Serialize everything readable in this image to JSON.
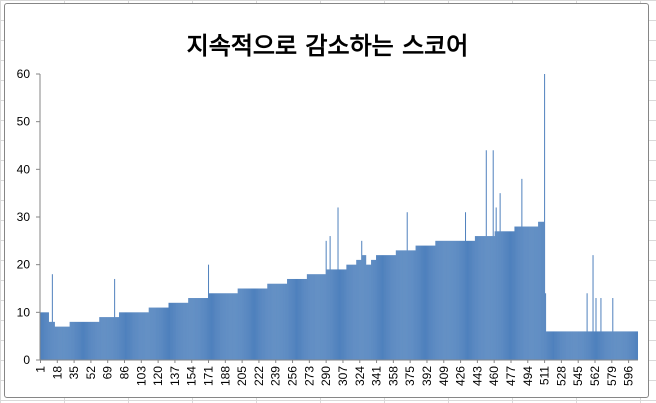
{
  "chart_data": {
    "type": "bar",
    "title": "지속적으로 감소하는 스코어",
    "xlabel": "",
    "ylabel": "",
    "ylim": [
      0,
      60
    ],
    "yticks": [
      0,
      10,
      20,
      30,
      40,
      50,
      60
    ],
    "x_range": [
      1,
      605
    ],
    "xtick_labels": [
      "1",
      "18",
      "35",
      "52",
      "69",
      "86",
      "103",
      "120",
      "137",
      "154",
      "171",
      "188",
      "205",
      "222",
      "239",
      "256",
      "273",
      "290",
      "307",
      "324",
      "341",
      "358",
      "375",
      "392",
      "409",
      "426",
      "443",
      "460",
      "477",
      "494",
      "511",
      "528",
      "545",
      "562",
      "579",
      "596"
    ],
    "grid": false,
    "legend": "none",
    "bar_color": "#4f81bd",
    "series": [
      {
        "segments": [
          {
            "x": [
              1,
              9
            ],
            "y": [
              10,
              10
            ]
          },
          {
            "x": [
              10,
              15
            ],
            "y": [
              8,
              8
            ]
          },
          {
            "x": [
              16,
              30
            ],
            "y": [
              7,
              7
            ]
          },
          {
            "x": [
              31,
              60
            ],
            "y": [
              8,
              8
            ]
          },
          {
            "x": [
              61,
              100
            ],
            "y": [
              9,
              10
            ]
          },
          {
            "x": [
              101,
              140
            ],
            "y": [
              10,
              12
            ]
          },
          {
            "x": [
              141,
              180
            ],
            "y": [
              12,
              14
            ]
          },
          {
            "x": [
              181,
              220
            ],
            "y": [
              14,
              15
            ]
          },
          {
            "x": [
              221,
              260
            ],
            "y": [
              15,
              17
            ]
          },
          {
            "x": [
              261,
              300
            ],
            "y": [
              17,
              19
            ]
          },
          {
            "x": [
              301,
              320
            ],
            "y": [
              19,
              20
            ]
          },
          {
            "x": [
              321,
              330
            ],
            "y": [
              21,
              22
            ]
          },
          {
            "x": [
              331,
              340
            ],
            "y": [
              20,
              21
            ]
          },
          {
            "x": [
              341,
              380
            ],
            "y": [
              22,
              23
            ]
          },
          {
            "x": [
              381,
              420
            ],
            "y": [
              24,
              25
            ]
          },
          {
            "x": [
              421,
              460
            ],
            "y": [
              25,
              26
            ]
          },
          {
            "x": [
              461,
              500
            ],
            "y": [
              27,
              28
            ]
          },
          {
            "x": [
              501,
              509
            ],
            "y": [
              28,
              29
            ]
          },
          {
            "x": [
              510,
              512
            ],
            "y": [
              29,
              29
            ]
          },
          {
            "x": [
              513,
              605
            ],
            "y": [
              6,
              6
            ]
          }
        ],
        "spikes": [
          {
            "x": 13,
            "y": 18
          },
          {
            "x": 76,
            "y": 17
          },
          {
            "x": 171,
            "y": 20
          },
          {
            "x": 290,
            "y": 25
          },
          {
            "x": 294,
            "y": 26
          },
          {
            "x": 302,
            "y": 32
          },
          {
            "x": 326,
            "y": 25
          },
          {
            "x": 372,
            "y": 31
          },
          {
            "x": 431,
            "y": 31
          },
          {
            "x": 452,
            "y": 44
          },
          {
            "x": 459,
            "y": 44
          },
          {
            "x": 462,
            "y": 32
          },
          {
            "x": 466,
            "y": 35
          },
          {
            "x": 488,
            "y": 38
          },
          {
            "x": 511,
            "y": 60
          },
          {
            "x": 512,
            "y": 14
          },
          {
            "x": 554,
            "y": 14
          },
          {
            "x": 560,
            "y": 22
          },
          {
            "x": 563,
            "y": 13
          },
          {
            "x": 568,
            "y": 13
          },
          {
            "x": 580,
            "y": 13
          }
        ]
      }
    ]
  }
}
